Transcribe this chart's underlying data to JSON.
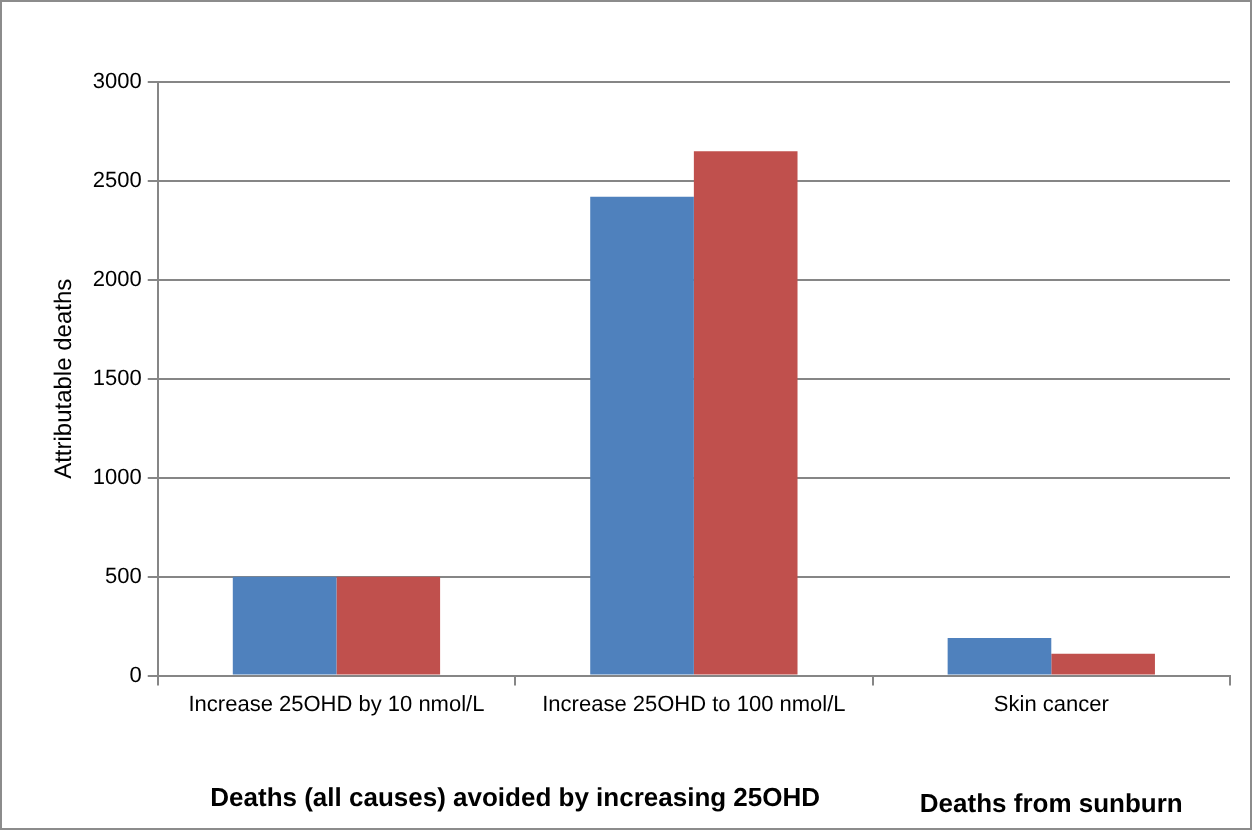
{
  "chart_data": {
    "type": "bar",
    "ylabel": "Attributable deaths",
    "categories": [
      "Increase 25OHD by 10 nmol/L",
      "Increase 25OHD to 100 nmol/L",
      "Skin cancer"
    ],
    "series": [
      {
        "color": "#4f81bd",
        "values": [
          500,
          2420,
          190
        ]
      },
      {
        "color": "#c0504d",
        "values": [
          500,
          2650,
          110
        ]
      }
    ],
    "ylim": [
      0,
      3000
    ],
    "yticks": [
      0,
      500,
      1000,
      1500,
      2000,
      2500,
      3000
    ],
    "grid": "y",
    "legend": false,
    "annotations": [
      "Deaths (all causes) avoided by increasing 25OHD",
      "Deaths from sunburn"
    ]
  }
}
